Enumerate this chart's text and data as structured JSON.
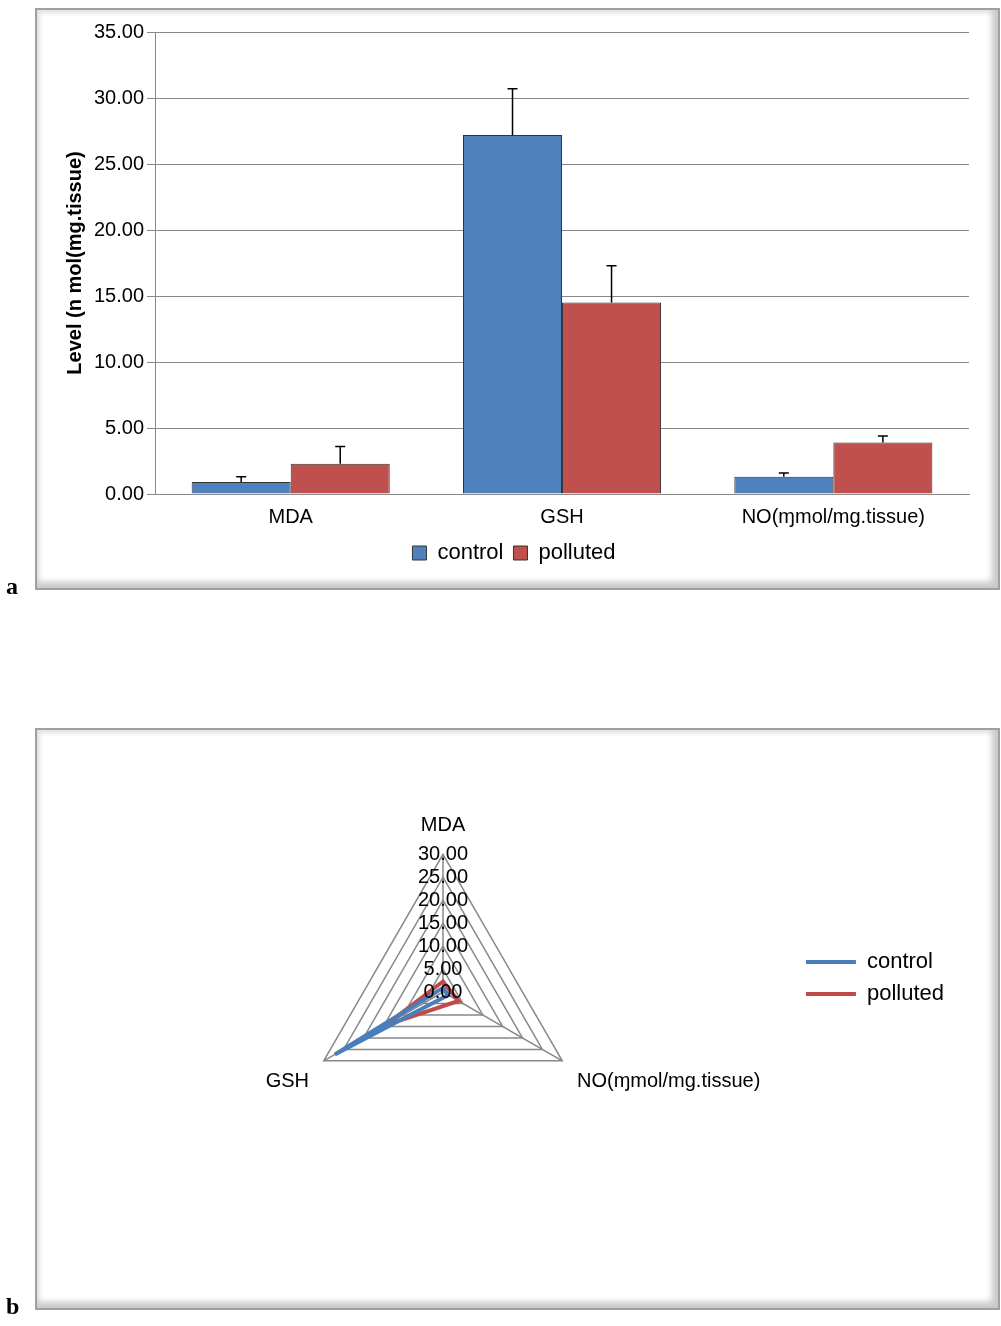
{
  "chart_data": [
    {
      "type": "bar",
      "ylabel": "Level (n mol(mg.tissue)",
      "categories": [
        "MDA",
        "GSH",
        "NO(ɱmol/mg.tissue)"
      ],
      "series": [
        {
          "name": "control",
          "color": "#4f81bd",
          "values": [
            0.9,
            27.2,
            1.3
          ],
          "errors": [
            [
              0.9,
              1.3
            ],
            [
              27.2,
              30.7
            ],
            [
              1.3,
              1.6
            ]
          ]
        },
        {
          "name": "polluted",
          "color": "#c0504d",
          "values": [
            2.3,
            14.5,
            3.9
          ],
          "errors": [
            [
              2.3,
              3.6
            ],
            [
              14.5,
              17.3
            ],
            [
              3.9,
              4.4
            ]
          ]
        }
      ],
      "ylim": [
        0,
        35
      ],
      "yticks": [
        {
          "value": 0,
          "label": "0.00"
        },
        {
          "value": 5,
          "label": "5.00"
        },
        {
          "value": 10,
          "label": "10.00"
        },
        {
          "value": 15,
          "label": "15.00"
        },
        {
          "value": 20,
          "label": "20.00"
        },
        {
          "value": 25,
          "label": "25.00"
        },
        {
          "value": 30,
          "label": "30.00"
        },
        {
          "value": 35,
          "label": "35.00"
        }
      ],
      "grid": "y",
      "legend": "bottom",
      "annotations": [
        "a"
      ]
    },
    {
      "type": "radar",
      "categories": [
        "MDA",
        "NO(ɱmol/mg.tissue)",
        "GSH"
      ],
      "series": [
        {
          "name": "control",
          "color": "#4a7ebb",
          "values": [
            0.9,
            1.3,
            27.2
          ]
        },
        {
          "name": "polluted",
          "color": "#be4b48",
          "values": [
            2.3,
            3.9,
            14.5
          ]
        }
      ],
      "ylim": [
        0,
        30
      ],
      "yticks": [
        {
          "value": 0,
          "label": "0.00"
        },
        {
          "value": 5,
          "label": "5.00"
        },
        {
          "value": 10,
          "label": "10.00"
        },
        {
          "value": 15,
          "label": "15.00"
        },
        {
          "value": 20,
          "label": "20.00"
        },
        {
          "value": 25,
          "label": "25.00"
        },
        {
          "value": 30,
          "label": "30.00"
        }
      ],
      "grid": true,
      "legend": "right",
      "marker": "none",
      "annotations": [
        "b"
      ]
    }
  ]
}
